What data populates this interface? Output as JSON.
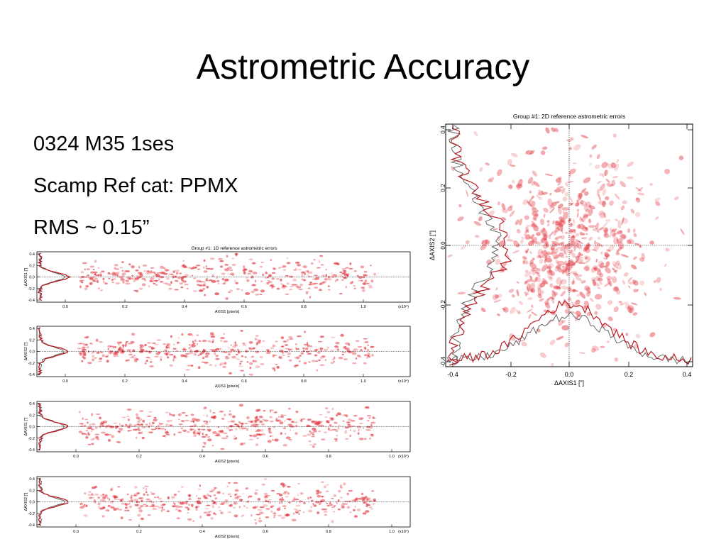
{
  "slide": {
    "title": "Astrometric Accuracy",
    "bullets": [
      "0324 M35 1ses",
      "Scamp Ref cat: PPMX",
      "RMS ~ 0.15”"
    ]
  },
  "colors": {
    "points": "#e0303a",
    "histogram_red": "#b81c24",
    "histogram_gray": "#666666",
    "axes": "#000000"
  },
  "figures": {
    "scatter2d": {
      "title": "Group #1: 2D reference astrometric errors",
      "xlabel": "ΔAXIS1 [”]",
      "ylabel": "ΔAXIS2 [”]",
      "xticks": [
        "-0.4",
        "-0.2",
        "0.0",
        "0.2",
        "0.4"
      ],
      "yticks": [
        "-0.4",
        "-0.2",
        "0.0",
        "0.2",
        "0.4"
      ]
    },
    "panels1d": [
      {
        "title": "Group #1: 1D reference astrometric errors",
        "ylabel": "ΔAXIS1 [”]",
        "xlabel": "AXIS1 [pixels]",
        "xticks": [
          "0.0",
          "0.2",
          "0.4",
          "0.6",
          "0.8",
          "1.0"
        ],
        "yticks": [
          "0.4",
          "0.2",
          "0.0",
          "-0.2",
          "-0.4"
        ],
        "scale": "(x10⁴)"
      },
      {
        "title": "",
        "ylabel": "ΔAXIS2 [”]",
        "xlabel": "AXIS1 [pixels]",
        "xticks": [
          "0.0",
          "0.2",
          "0.4",
          "0.6",
          "0.8",
          "1.0"
        ],
        "yticks": [
          "0.4",
          "0.2",
          "0.0",
          "-0.2",
          "-0.4"
        ],
        "scale": "(x10⁴)"
      },
      {
        "title": "",
        "ylabel": "ΔAXIS1 [”]",
        "xlabel": "AXIS2 [pixels]",
        "xticks": [
          "0.0",
          "0.2",
          "0.4",
          "0.6",
          "0.8",
          "1.0"
        ],
        "yticks": [
          "0.4",
          "0.2",
          "0.0",
          "-0.2",
          "-0.4"
        ],
        "scale": "(x10⁴)"
      },
      {
        "title": "",
        "ylabel": "ΔAXIS2 [”]",
        "xlabel": "AXIS2 [pixels]",
        "xticks": [
          "0.0",
          "0.2",
          "0.4",
          "0.6",
          "0.8",
          "1.0"
        ],
        "yticks": [
          "0.4",
          "0.2",
          "0.0",
          "-0.2",
          "-0.4"
        ],
        "scale": "(x10⁴)"
      }
    ]
  }
}
